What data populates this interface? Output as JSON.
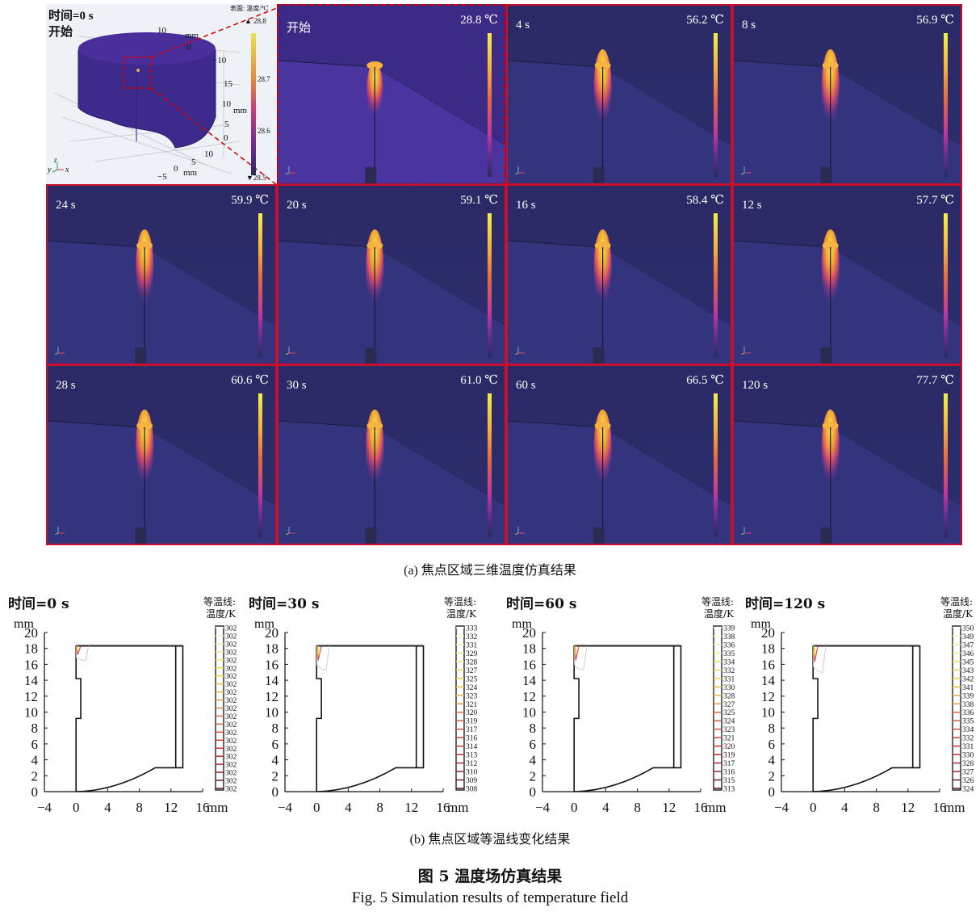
{
  "panel_a": {
    "caption": "(a) 焦点区域三维温度仿真结果",
    "overview": {
      "time_label": "时间=0 s",
      "state_label": "开始",
      "colorbar_title": "表面: 温度/℃",
      "colorbar_max": "▲ 28.8",
      "colorbar_ticks": [
        "28.7",
        "28.6"
      ],
      "colorbar_min": "▼28.5",
      "axis_labels": [
        "10",
        "mm",
        "0",
        "−10",
        "15",
        "10",
        "mm",
        "5",
        "0",
        "10",
        "5",
        "0",
        "mm",
        "−5"
      ],
      "triad": {
        "y": "y",
        "z": "z",
        "x": "x"
      }
    },
    "frames": [
      {
        "time": "开始",
        "max_temp": "28.8 ℃"
      },
      {
        "time": "4 s",
        "max_temp": "56.2 ℃"
      },
      {
        "time": "8 s",
        "max_temp": "56.9 ℃"
      },
      {
        "time": "24 s",
        "max_temp": "59.9 ℃"
      },
      {
        "time": "20 s",
        "max_temp": "59.1 ℃"
      },
      {
        "time": "16 s",
        "max_temp": "58.4 ℃"
      },
      {
        "time": "12 s",
        "max_temp": "57.7 ℃"
      },
      {
        "time": "28 s",
        "max_temp": "60.6 ℃"
      },
      {
        "time": "30 s",
        "max_temp": "61.0 ℃"
      },
      {
        "time": "60 s",
        "max_temp": "66.5 ℃"
      },
      {
        "time": "120 s",
        "max_temp": "77.7 ℃"
      }
    ],
    "colors": {
      "frame_border": "#c8102e",
      "dash": "#d40000"
    }
  },
  "panel_b": {
    "caption": "(b) 焦点区域等温线变化结果"
  },
  "figure": {
    "title_cn": "图 5  温度场仿真结果",
    "title_en": "Fig. 5  Simulation results of temperature field"
  },
  "chart_data": [
    {
      "type": "contour",
      "title": "时间=0 s",
      "ylabel": "mm",
      "xlabel": "mm",
      "xlim": [
        -4,
        16
      ],
      "ylim": [
        0,
        20
      ],
      "xticks": [
        "−4",
        "0",
        "4",
        "8",
        "12",
        "16"
      ],
      "yticks": [
        "0",
        "2",
        "4",
        "6",
        "8",
        "10",
        "12",
        "14",
        "16",
        "18",
        "20"
      ],
      "legend_title": [
        "等温线:",
        "温度/K"
      ],
      "legend_levels": [
        "302",
        "302",
        "302",
        "302",
        "302",
        "302",
        "302",
        "302",
        "302",
        "302",
        "302",
        "302",
        "302",
        "302",
        "302",
        "302",
        "302",
        "302",
        "302",
        "302",
        "302"
      ],
      "hot_zone_depth_mm": 1.8
    },
    {
      "type": "contour",
      "title": "时间=30 s",
      "ylabel": "mm",
      "xlabel": "mm",
      "xlim": [
        -4,
        16
      ],
      "ylim": [
        0,
        20
      ],
      "xticks": [
        "−4",
        "0",
        "4",
        "8",
        "12",
        "16"
      ],
      "yticks": [
        "0",
        "2",
        "4",
        "6",
        "8",
        "10",
        "12",
        "14",
        "16",
        "18",
        "20"
      ],
      "legend_title": [
        "等温线:",
        "温度/K"
      ],
      "legend_levels": [
        "333",
        "332",
        "331",
        "329",
        "328",
        "327",
        "325",
        "324",
        "323",
        "321",
        "320",
        "319",
        "317",
        "316",
        "314",
        "313",
        "312",
        "310",
        "309",
        "308"
      ],
      "hot_zone_depth_mm": 3.0
    },
    {
      "type": "contour",
      "title": "时间=60 s",
      "ylabel": "mm",
      "xlabel": "mm",
      "xlim": [
        -4,
        16
      ],
      "ylim": [
        0,
        20
      ],
      "xticks": [
        "−4",
        "0",
        "4",
        "8",
        "12",
        "16"
      ],
      "yticks": [
        "0",
        "2",
        "4",
        "6",
        "8",
        "10",
        "12",
        "14",
        "16",
        "18",
        "20"
      ],
      "legend_title": [
        "等温线:",
        "温度/K"
      ],
      "legend_levels": [
        "339",
        "338",
        "336",
        "335",
        "334",
        "332",
        "331",
        "330",
        "328",
        "327",
        "325",
        "324",
        "323",
        "321",
        "320",
        "319",
        "317",
        "316",
        "315",
        "313"
      ],
      "hot_zone_depth_mm": 3.0
    },
    {
      "type": "contour",
      "title": "时间=120 s",
      "ylabel": "mm",
      "xlabel": "mm",
      "xlim": [
        -4,
        16
      ],
      "ylim": [
        0,
        20
      ],
      "xticks": [
        "−4",
        "0",
        "4",
        "8",
        "12",
        "16"
      ],
      "yticks": [
        "0",
        "2",
        "4",
        "6",
        "8",
        "10",
        "12",
        "14",
        "16",
        "18",
        "20"
      ],
      "legend_title": [
        "等温线:",
        "温度/K"
      ],
      "legend_levels": [
        "350",
        "349",
        "347",
        "346",
        "345",
        "343",
        "342",
        "341",
        "339",
        "338",
        "336",
        "335",
        "334",
        "332",
        "331",
        "330",
        "328",
        "327",
        "326",
        "324"
      ],
      "hot_zone_depth_mm": 3.3
    }
  ]
}
